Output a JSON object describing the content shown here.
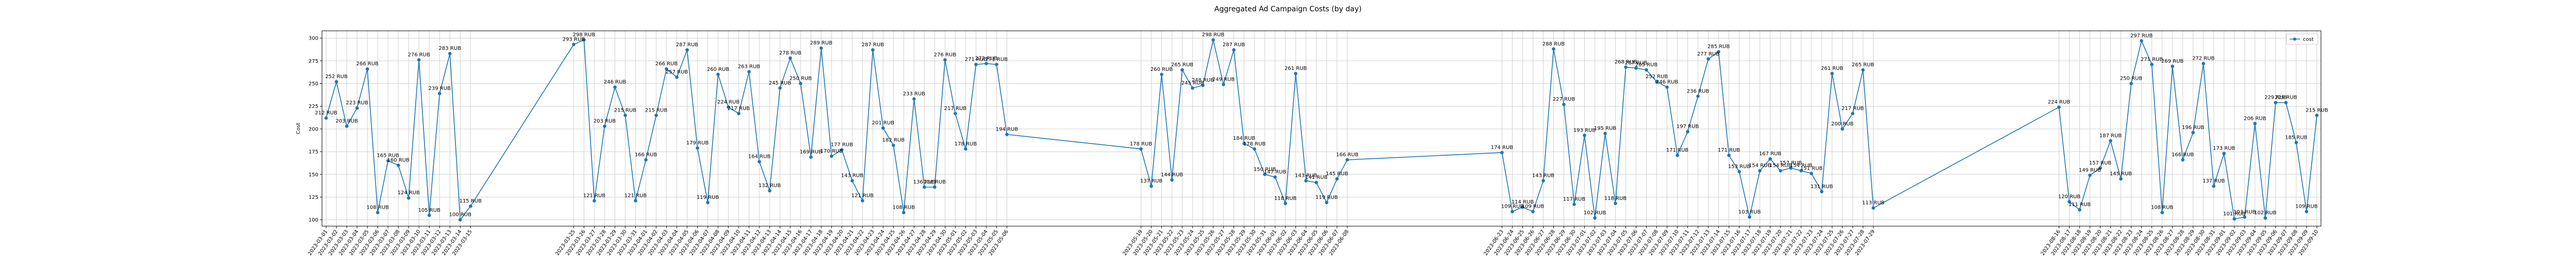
{
  "chart_data": {
    "type": "line",
    "title": "Aggregated Ad Campaign Costs (by day)",
    "xlabel": "",
    "ylabel": "Cost",
    "ylim": [
      93,
      308
    ],
    "yticks": [
      100,
      125,
      150,
      175,
      200,
      225,
      250,
      275,
      300
    ],
    "grid": true,
    "legend": {
      "placement": "top-right",
      "entries": [
        "cost"
      ]
    },
    "color": "#1f77b4",
    "unit_suffix": "RUB",
    "series": [
      {
        "name": "cost",
        "points": [
          {
            "x": "2023-03-01",
            "y": 212
          },
          {
            "x": "2023-03-02",
            "y": 252
          },
          {
            "x": "2023-03-03",
            "y": 203
          },
          {
            "x": "2023-03-04",
            "y": 223
          },
          {
            "x": "2023-03-05",
            "y": 266
          },
          {
            "x": "2023-03-06",
            "y": 108
          },
          {
            "x": "2023-03-07",
            "y": 165
          },
          {
            "x": "2023-03-08",
            "y": 160
          },
          {
            "x": "2023-03-09",
            "y": 124
          },
          {
            "x": "2023-03-10",
            "y": 276
          },
          {
            "x": "2023-03-11",
            "y": 105
          },
          {
            "x": "2023-03-12",
            "y": 239
          },
          {
            "x": "2023-03-13",
            "y": 283
          },
          {
            "x": "2023-03-14",
            "y": 100
          },
          {
            "x": "2023-03-15",
            "y": 115
          },
          {
            "x": "2023-03-25",
            "y": 293
          },
          {
            "x": "2023-03-26",
            "y": 298
          },
          {
            "x": "2023-03-27",
            "y": 121
          },
          {
            "x": "2023-03-28",
            "y": 203
          },
          {
            "x": "2023-03-29",
            "y": 246
          },
          {
            "x": "2023-03-30",
            "y": 215
          },
          {
            "x": "2023-03-31",
            "y": 121
          },
          {
            "x": "2023-04-01",
            "y": 166
          },
          {
            "x": "2023-04-02",
            "y": 215
          },
          {
            "x": "2023-04-03",
            "y": 266
          },
          {
            "x": "2023-04-04",
            "y": 257
          },
          {
            "x": "2023-04-05",
            "y": 287
          },
          {
            "x": "2023-04-06",
            "y": 179
          },
          {
            "x": "2023-04-07",
            "y": 119
          },
          {
            "x": "2023-04-08",
            "y": 260
          },
          {
            "x": "2023-04-09",
            "y": 224
          },
          {
            "x": "2023-04-10",
            "y": 217
          },
          {
            "x": "2023-04-11",
            "y": 263
          },
          {
            "x": "2023-04-12",
            "y": 164
          },
          {
            "x": "2023-04-13",
            "y": 132
          },
          {
            "x": "2023-04-14",
            "y": 245
          },
          {
            "x": "2023-04-15",
            "y": 278
          },
          {
            "x": "2023-04-16",
            "y": 250
          },
          {
            "x": "2023-04-17",
            "y": 169
          },
          {
            "x": "2023-04-18",
            "y": 289
          },
          {
            "x": "2023-04-19",
            "y": 170
          },
          {
            "x": "2023-04-20",
            "y": 177
          },
          {
            "x": "2023-04-21",
            "y": 143
          },
          {
            "x": "2023-04-22",
            "y": 121
          },
          {
            "x": "2023-04-23",
            "y": 287
          },
          {
            "x": "2023-04-24",
            "y": 201
          },
          {
            "x": "2023-04-25",
            "y": 182
          },
          {
            "x": "2023-04-26",
            "y": 108
          },
          {
            "x": "2023-04-27",
            "y": 233
          },
          {
            "x": "2023-04-28",
            "y": 136
          },
          {
            "x": "2023-04-29",
            "y": 136
          },
          {
            "x": "2023-04-30",
            "y": 276
          },
          {
            "x": "2023-05-01",
            "y": 217
          },
          {
            "x": "2023-05-02",
            "y": 178
          },
          {
            "x": "2023-05-03",
            "y": 271
          },
          {
            "x": "2023-05-04",
            "y": 272
          },
          {
            "x": "2023-05-05",
            "y": 271
          },
          {
            "x": "2023-05-06",
            "y": 194
          },
          {
            "x": "2023-05-19",
            "y": 178
          },
          {
            "x": "2023-05-20",
            "y": 137
          },
          {
            "x": "2023-05-21",
            "y": 260
          },
          {
            "x": "2023-05-22",
            "y": 144
          },
          {
            "x": "2023-05-23",
            "y": 265
          },
          {
            "x": "2023-05-24",
            "y": 245
          },
          {
            "x": "2023-05-25",
            "y": 248
          },
          {
            "x": "2023-05-26",
            "y": 298
          },
          {
            "x": "2023-05-27",
            "y": 249
          },
          {
            "x": "2023-05-28",
            "y": 287
          },
          {
            "x": "2023-05-29",
            "y": 184
          },
          {
            "x": "2023-05-30",
            "y": 178
          },
          {
            "x": "2023-05-31",
            "y": 150
          },
          {
            "x": "2023-06-01",
            "y": 147
          },
          {
            "x": "2023-06-02",
            "y": 118
          },
          {
            "x": "2023-06-03",
            "y": 261
          },
          {
            "x": "2023-06-04",
            "y": 143
          },
          {
            "x": "2023-06-05",
            "y": 141
          },
          {
            "x": "2023-06-06",
            "y": 119
          },
          {
            "x": "2023-06-07",
            "y": 145
          },
          {
            "x": "2023-06-08",
            "y": 166
          },
          {
            "x": "2023-06-23",
            "y": 174
          },
          {
            "x": "2023-06-24",
            "y": 109
          },
          {
            "x": "2023-06-25",
            "y": 114
          },
          {
            "x": "2023-06-26",
            "y": 109
          },
          {
            "x": "2023-06-27",
            "y": 143
          },
          {
            "x": "2023-06-28",
            "y": 288
          },
          {
            "x": "2023-06-29",
            "y": 227
          },
          {
            "x": "2023-06-30",
            "y": 117
          },
          {
            "x": "2023-07-01",
            "y": 193
          },
          {
            "x": "2023-07-02",
            "y": 102
          },
          {
            "x": "2023-07-03",
            "y": 195
          },
          {
            "x": "2023-07-04",
            "y": 118
          },
          {
            "x": "2023-07-05",
            "y": 268
          },
          {
            "x": "2023-07-06",
            "y": 267
          },
          {
            "x": "2023-07-07",
            "y": 265
          },
          {
            "x": "2023-07-08",
            "y": 252
          },
          {
            "x": "2023-07-09",
            "y": 246
          },
          {
            "x": "2023-07-10",
            "y": 171
          },
          {
            "x": "2023-07-11",
            "y": 197
          },
          {
            "x": "2023-07-12",
            "y": 236
          },
          {
            "x": "2023-07-13",
            "y": 277
          },
          {
            "x": "2023-07-14",
            "y": 285
          },
          {
            "x": "2023-07-15",
            "y": 171
          },
          {
            "x": "2023-07-16",
            "y": 153
          },
          {
            "x": "2023-07-17",
            "y": 103
          },
          {
            "x": "2023-07-18",
            "y": 154
          },
          {
            "x": "2023-07-19",
            "y": 167
          },
          {
            "x": "2023-07-20",
            "y": 154
          },
          {
            "x": "2023-07-21",
            "y": 157
          },
          {
            "x": "2023-07-22",
            "y": 154
          },
          {
            "x": "2023-07-23",
            "y": 151
          },
          {
            "x": "2023-07-24",
            "y": 131
          },
          {
            "x": "2023-07-25",
            "y": 261
          },
          {
            "x": "2023-07-26",
            "y": 200
          },
          {
            "x": "2023-07-27",
            "y": 217
          },
          {
            "x": "2023-07-28",
            "y": 265
          },
          {
            "x": "2023-07-29",
            "y": 113
          },
          {
            "x": "2023-08-16",
            "y": 224
          },
          {
            "x": "2023-08-17",
            "y": 120
          },
          {
            "x": "2023-08-18",
            "y": 111
          },
          {
            "x": "2023-08-19",
            "y": 149
          },
          {
            "x": "2023-08-20",
            "y": 157
          },
          {
            "x": "2023-08-21",
            "y": 187
          },
          {
            "x": "2023-08-22",
            "y": 145
          },
          {
            "x": "2023-08-23",
            "y": 250
          },
          {
            "x": "2023-08-24",
            "y": 297
          },
          {
            "x": "2023-08-25",
            "y": 271
          },
          {
            "x": "2023-08-26",
            "y": 108
          },
          {
            "x": "2023-08-27",
            "y": 269
          },
          {
            "x": "2023-08-28",
            "y": 166
          },
          {
            "x": "2023-08-29",
            "y": 196
          },
          {
            "x": "2023-08-30",
            "y": 272
          },
          {
            "x": "2023-08-31",
            "y": 137
          },
          {
            "x": "2023-09-01",
            "y": 173
          },
          {
            "x": "2023-09-02",
            "y": 101
          },
          {
            "x": "2023-09-03",
            "y": 103
          },
          {
            "x": "2023-09-04",
            "y": 206
          },
          {
            "x": "2023-09-05",
            "y": 102
          },
          {
            "x": "2023-09-06",
            "y": 229
          },
          {
            "x": "2023-09-07",
            "y": 229
          },
          {
            "x": "2023-09-08",
            "y": 185
          },
          {
            "x": "2023-09-09",
            "y": 109
          },
          {
            "x": "2023-09-10",
            "y": 215
          }
        ]
      }
    ]
  }
}
